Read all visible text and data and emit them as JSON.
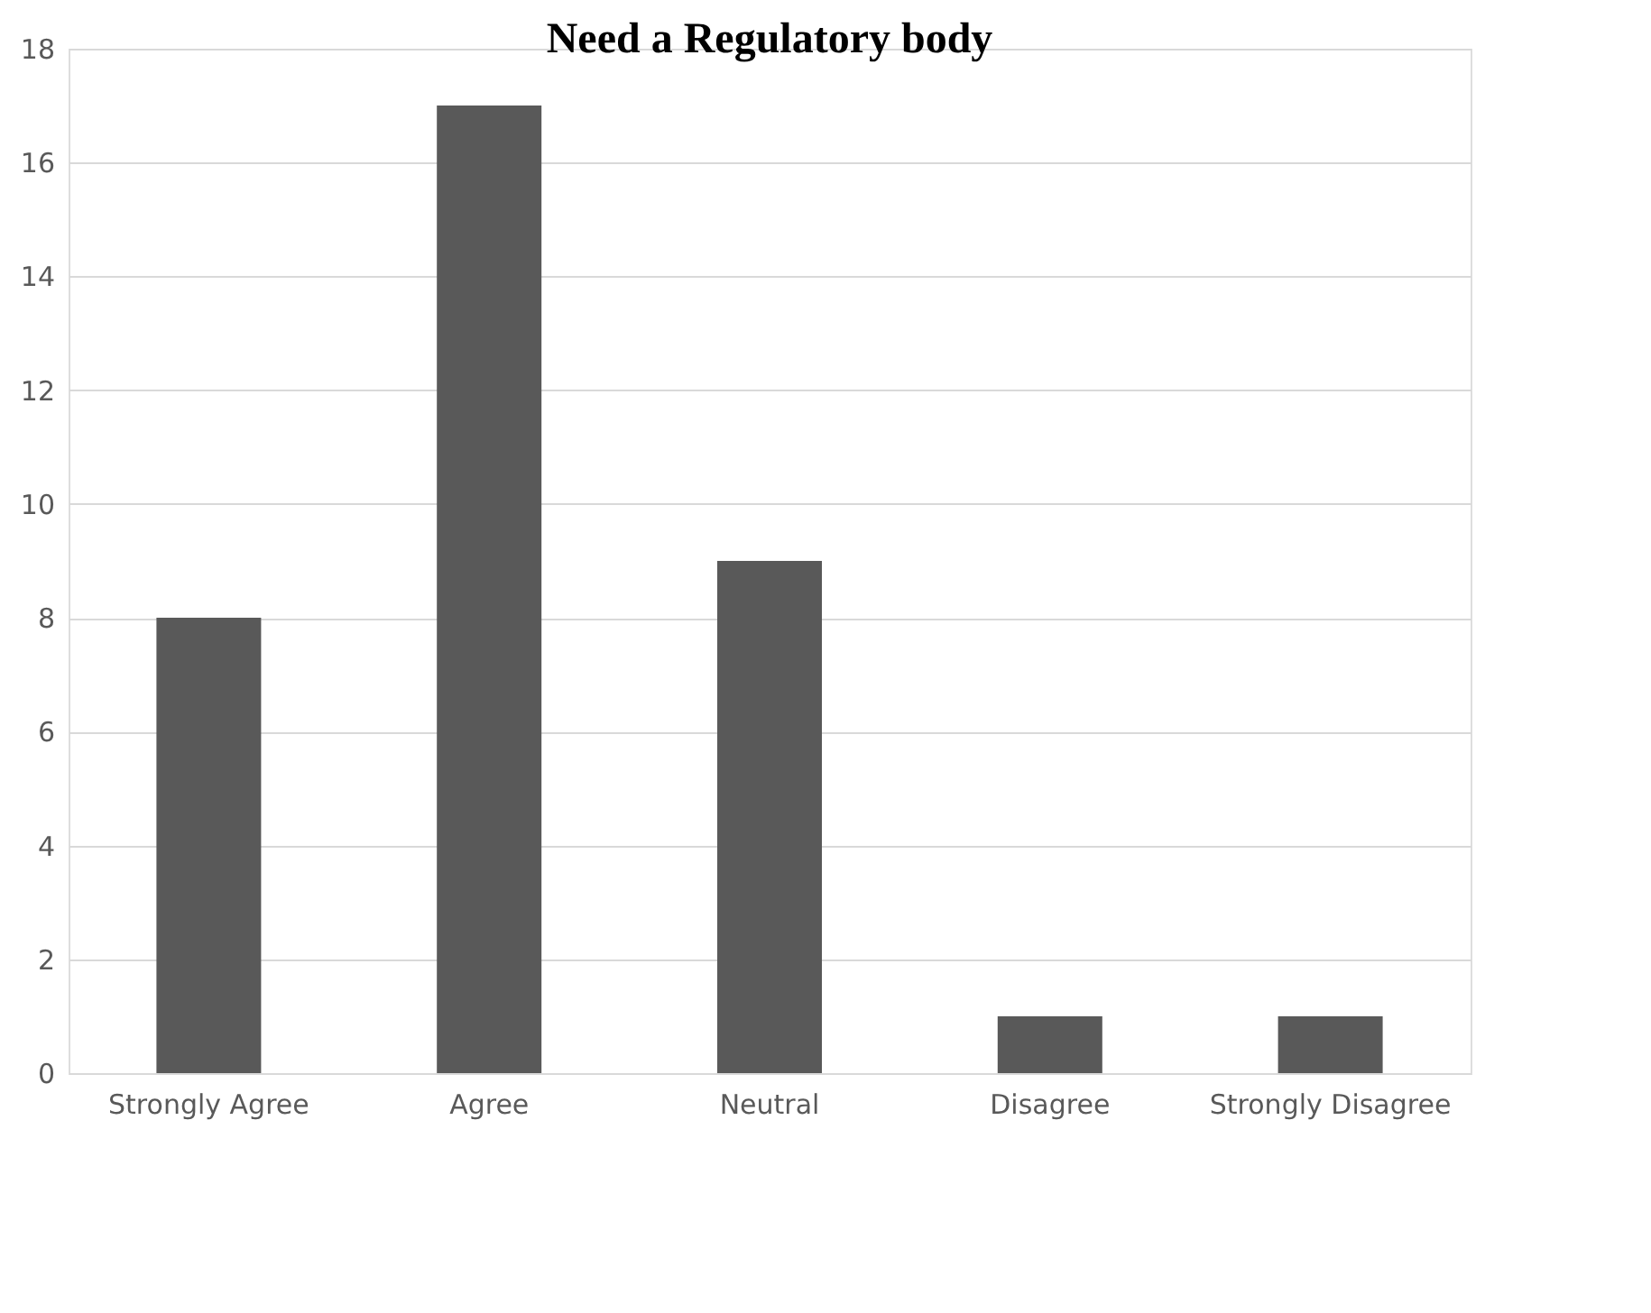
{
  "chart_data": {
    "type": "bar",
    "title": "Need a Regulatory body",
    "categories": [
      "Strongly Agree",
      "Agree",
      "Neutral",
      "Disagree",
      "Strongly Disagree"
    ],
    "values": [
      8,
      17,
      9,
      1,
      1
    ],
    "color": "#595959",
    "ylim": [
      0,
      18
    ],
    "yticks": [
      0,
      2,
      4,
      6,
      8,
      10,
      12,
      14,
      16,
      18
    ],
    "grid": "y"
  }
}
